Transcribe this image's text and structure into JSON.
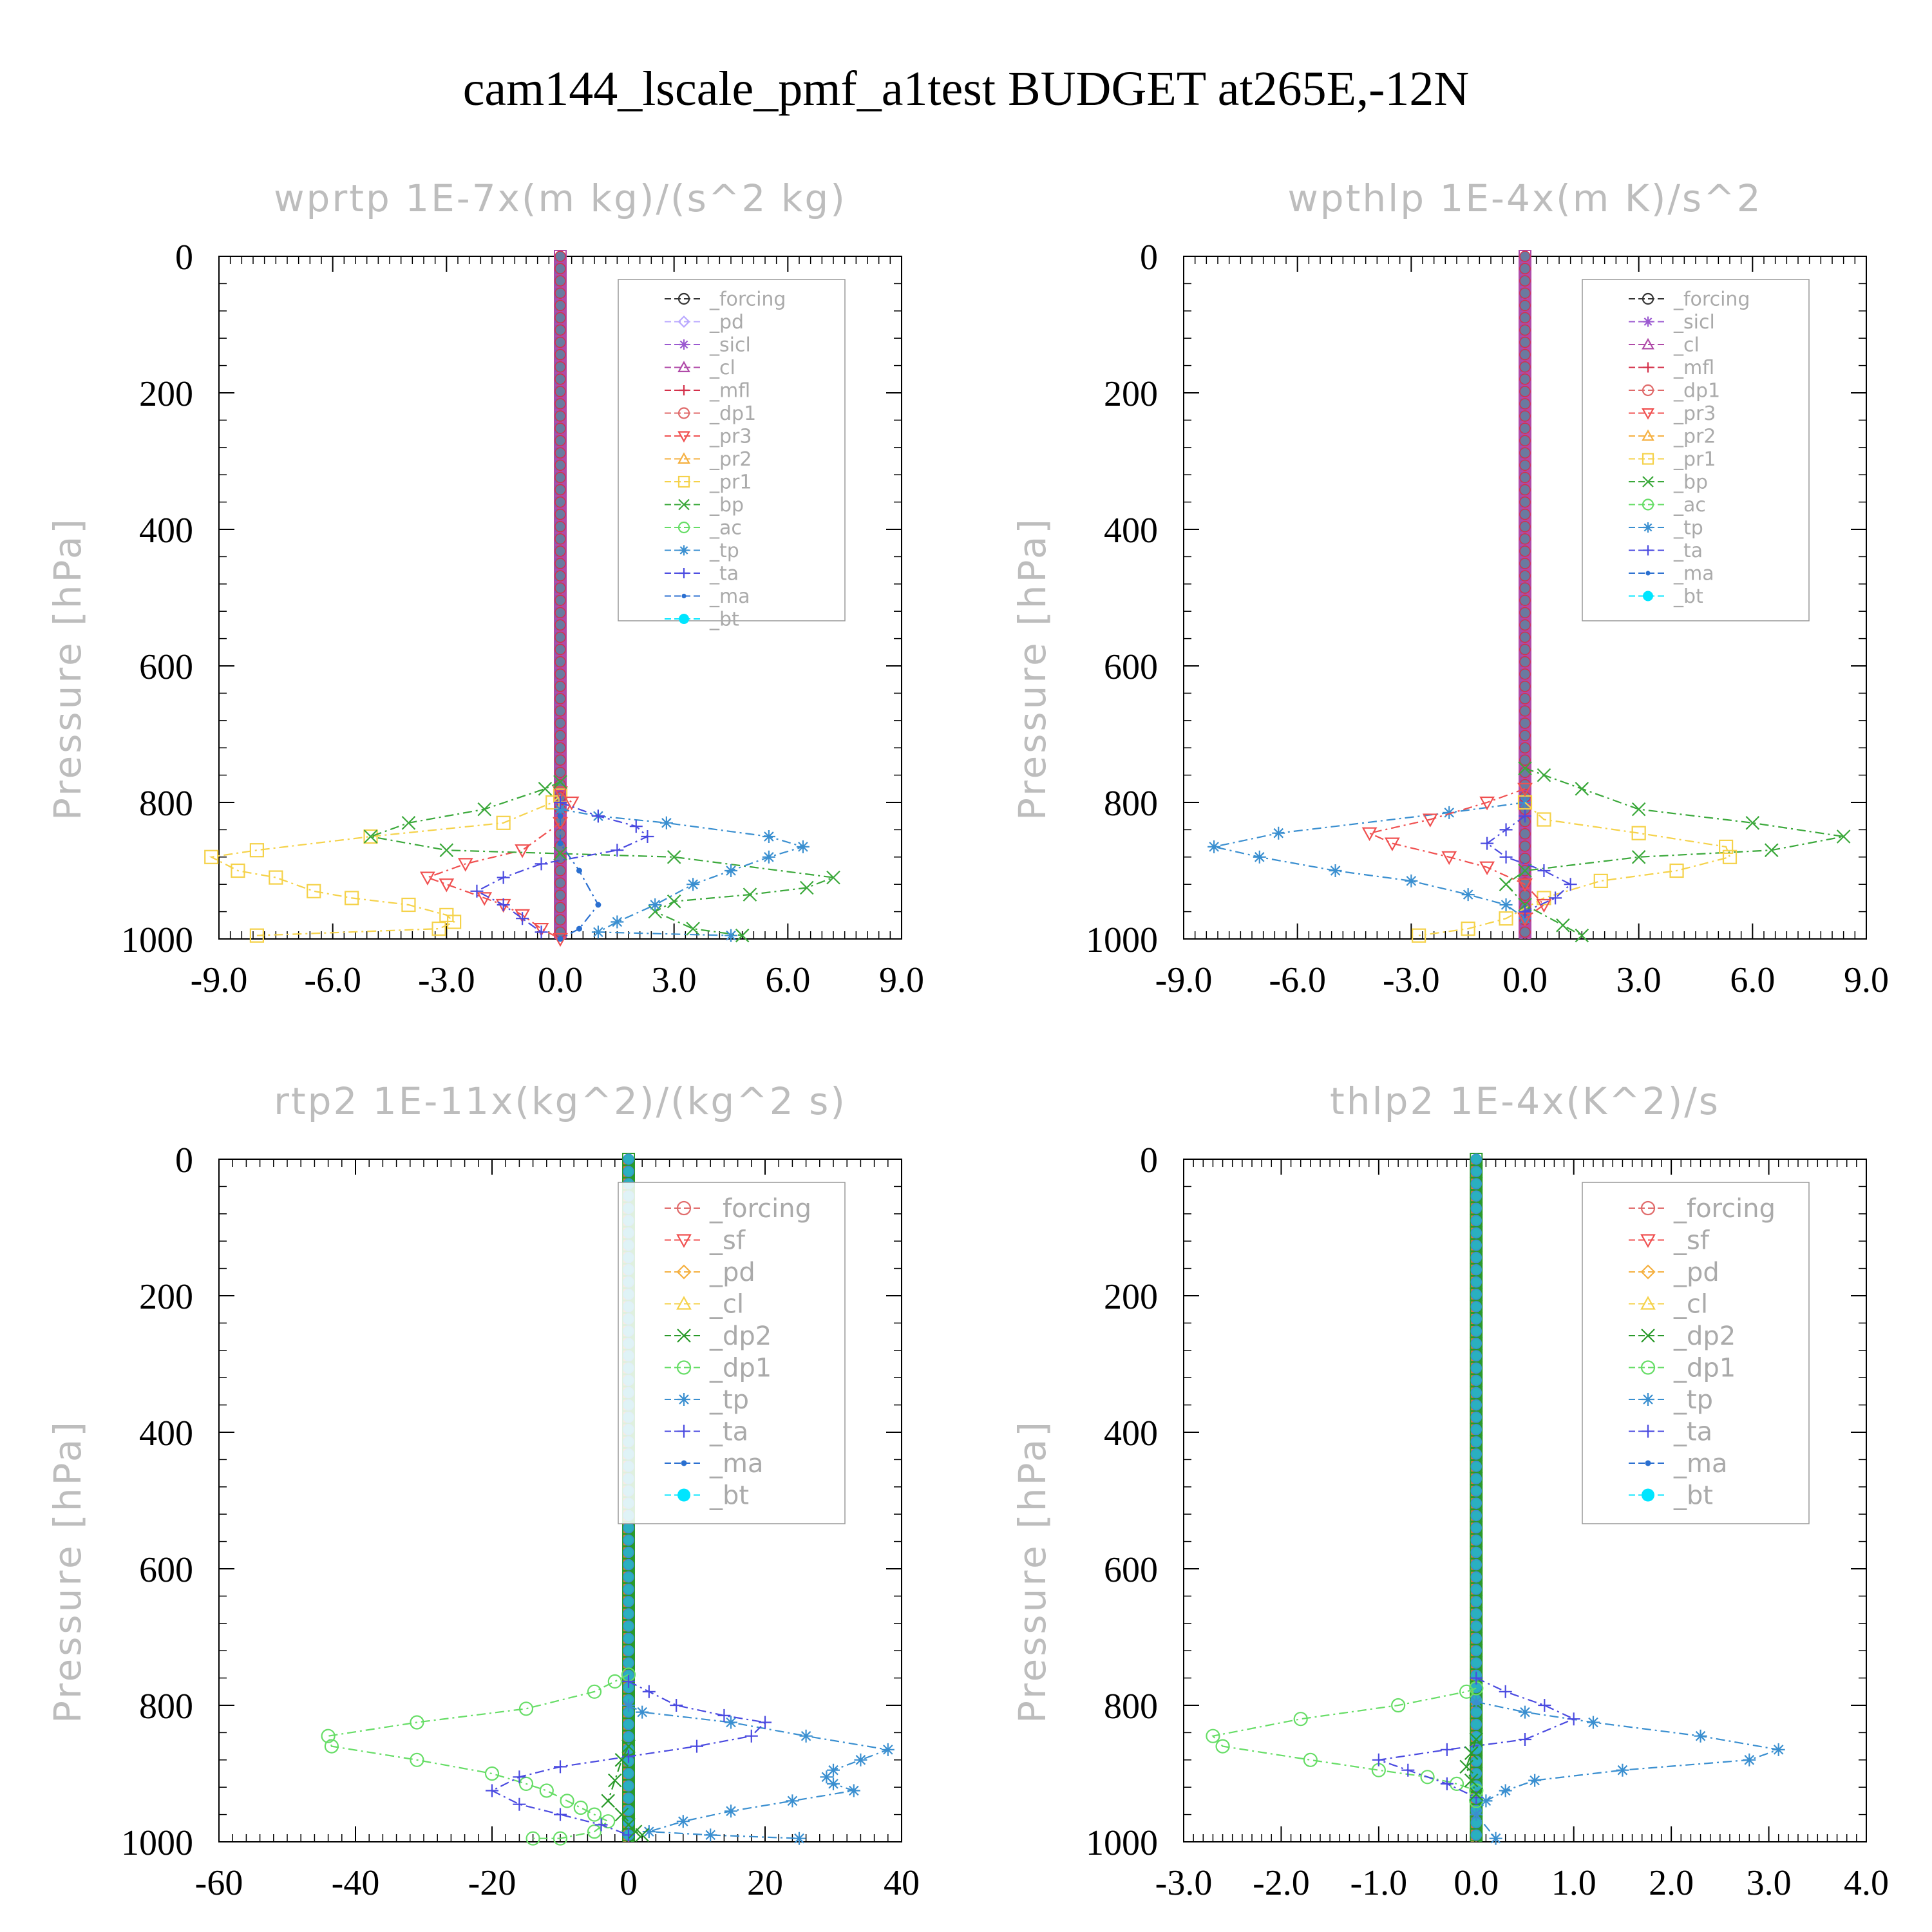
{
  "page_title": "cam144_lscale_pmf_a1test  BUDGET at265E,-12N",
  "colors": {
    "forcing": "#333333",
    "pd": "#b9a8ff",
    "sicl": "#9b59d0",
    "cl": "#b04aa8",
    "mfl": "#d4304a",
    "dp1": "#e06a6a",
    "pr3": "#f05050",
    "pr2": "#f5b040",
    "pr1": "#f5d24a",
    "bp": "#3aa83a",
    "ac": "#66dd66",
    "tp": "#3a8fd0",
    "ta": "#4a4ae0",
    "ma": "#2a6fd0",
    "bt": "#00e5ff",
    "sf": "#f05050",
    "dp2": "#2a9a2a"
  },
  "chart_data": [
    {
      "type": "line",
      "title": "wprtp  1E-7x(m kg)/(s^2 kg)",
      "ylabel": "Pressure [hPa]",
      "xlim": [
        -9,
        9
      ],
      "ylim": [
        0,
        1000
      ],
      "xticks": [
        "-9.0",
        "-6.0",
        "-3.0",
        "0.0",
        "3.0",
        "6.0",
        "9.0"
      ],
      "yticks": [
        "0",
        "200",
        "400",
        "600",
        "800",
        "1000"
      ],
      "legend": [
        "_forcing",
        "_pd",
        "_sicl",
        "_cl",
        "_mfl",
        "_dp1",
        "_pr3",
        "_pr2",
        "_pr1",
        "_bp",
        "_ac",
        "_tp",
        "_ta",
        "_ma",
        "_bt"
      ],
      "series": [
        {
          "name": "_pr1",
          "key": "pr1",
          "marker": "square",
          "x": [
            0,
            -0.2,
            -1.5,
            -5,
            -8,
            -9.2,
            -8.5,
            -7.5,
            -6.5,
            -5.5,
            -4,
            -3,
            -2.8,
            -3.2,
            -8
          ],
          "y": [
            790,
            800,
            830,
            850,
            870,
            880,
            900,
            910,
            930,
            940,
            950,
            965,
            975,
            985,
            995
          ]
        },
        {
          "name": "_pr3",
          "key": "pr3",
          "marker": "tri-down",
          "x": [
            0,
            0.3,
            0,
            -1,
            -2.5,
            -3.5,
            -3,
            -2,
            -1.5,
            -1,
            -0.5,
            0
          ],
          "y": [
            785,
            800,
            830,
            870,
            890,
            910,
            920,
            940,
            950,
            965,
            985,
            1000
          ]
        },
        {
          "name": "_bp",
          "key": "bp",
          "marker": "x",
          "x": [
            0,
            -0.4,
            -2,
            -4,
            -5,
            -3,
            0,
            3,
            7.2,
            6.5,
            5,
            3,
            2.5,
            3.5,
            4.8
          ],
          "y": [
            770,
            780,
            810,
            830,
            850,
            870,
            875,
            880,
            910,
            925,
            935,
            945,
            960,
            985,
            995
          ]
        },
        {
          "name": "_tp",
          "key": "tp",
          "marker": "star",
          "x": [
            0,
            1,
            2.8,
            5.5,
            6.4,
            5.5,
            4.5,
            3.5,
            2.5,
            1.5,
            1,
            4.5
          ],
          "y": [
            810,
            820,
            830,
            850,
            865,
            880,
            900,
            920,
            950,
            975,
            990,
            995
          ]
        },
        {
          "name": "_ta",
          "key": "ta",
          "marker": "plus",
          "x": [
            0,
            1,
            2,
            2.3,
            1.5,
            -0.5,
            -1.5,
            -2.2,
            -1.5,
            -1,
            -0.5
          ],
          "y": [
            800,
            820,
            835,
            850,
            870,
            890,
            910,
            930,
            950,
            970,
            990
          ]
        },
        {
          "name": "_ma",
          "key": "ma",
          "marker": "dot",
          "x": [
            0,
            0,
            0.5,
            1,
            0.5,
            0
          ],
          "y": [
            820,
            860,
            900,
            950,
            985,
            1000
          ]
        }
      ]
    },
    {
      "type": "line",
      "title": "wpthlp  1E-4x(m K)/s^2",
      "ylabel": "Pressure [hPa]",
      "xlim": [
        -9,
        9
      ],
      "ylim": [
        0,
        1000
      ],
      "xticks": [
        "-9.0",
        "-6.0",
        "-3.0",
        "0.0",
        "3.0",
        "6.0",
        "9.0"
      ],
      "yticks": [
        "0",
        "200",
        "400",
        "600",
        "800",
        "1000"
      ],
      "legend": [
        "_forcing",
        "_sicl",
        "_cl",
        "_mfl",
        "_dp1",
        "_pr3",
        "_pr2",
        "_pr1",
        "_bp",
        "_ac",
        "_tp",
        "_ta",
        "_ma",
        "_bt"
      ],
      "series": [
        {
          "name": "_bp",
          "key": "bp",
          "marker": "x",
          "x": [
            0,
            0.5,
            1.5,
            3,
            6,
            8.4,
            6.5,
            3,
            0,
            -0.5,
            0,
            1,
            1.5
          ],
          "y": [
            750,
            760,
            780,
            810,
            830,
            850,
            870,
            880,
            900,
            920,
            950,
            980,
            995
          ]
        },
        {
          "name": "_tp",
          "key": "tp",
          "marker": "star",
          "x": [
            0,
            -2,
            -6.5,
            -8.2,
            -7,
            -5,
            -3,
            -1.5,
            -0.5,
            0
          ],
          "y": [
            800,
            815,
            845,
            865,
            880,
            900,
            915,
            935,
            950,
            970
          ]
        },
        {
          "name": "_pr1",
          "key": "pr1",
          "marker": "square",
          "x": [
            0,
            0.5,
            3,
            5.3,
            5.4,
            4,
            2,
            0.5,
            -0.5,
            -1.5,
            -2.8
          ],
          "y": [
            800,
            825,
            845,
            865,
            880,
            900,
            915,
            940,
            970,
            985,
            995
          ]
        },
        {
          "name": "_pr3",
          "key": "pr3",
          "marker": "tri-down",
          "x": [
            0,
            -1,
            -2.5,
            -4.1,
            -3.5,
            -2,
            -1,
            0,
            0.5,
            0
          ],
          "y": [
            780,
            800,
            825,
            845,
            860,
            880,
            895,
            920,
            950,
            970
          ]
        },
        {
          "name": "_ta",
          "key": "ta",
          "marker": "plus",
          "x": [
            0,
            -0.5,
            -1,
            -0.5,
            0.5,
            1.2,
            0.8,
            0
          ],
          "y": [
            820,
            840,
            860,
            880,
            900,
            920,
            940,
            960
          ]
        }
      ]
    },
    {
      "type": "line",
      "title": "rtp2  1E-11x(kg^2)/(kg^2 s)",
      "ylabel": "Pressure [hPa]",
      "xlim": [
        -60,
        40
      ],
      "ylim": [
        0,
        1000
      ],
      "xticks": [
        "-60",
        "-40",
        "-20",
        "0",
        "20",
        "40"
      ],
      "yticks": [
        "0",
        "200",
        "400",
        "600",
        "800",
        "1000"
      ],
      "legend": [
        "_forcing",
        "_sf",
        "_pd",
        "_cl",
        "_dp2",
        "_dp1",
        "_tp",
        "_ta",
        "_ma",
        "_bt"
      ],
      "series": [
        {
          "name": "_dp1",
          "key": "ac",
          "marker": "circle",
          "x": [
            0,
            -2,
            -5,
            -15,
            -31,
            -44,
            -43.5,
            -31,
            -20,
            -15,
            -12,
            -9,
            -7,
            -5,
            -3,
            -5,
            -10,
            -14
          ],
          "y": [
            755,
            765,
            780,
            805,
            825,
            845,
            860,
            880,
            900,
            915,
            925,
            940,
            950,
            960,
            970,
            985,
            995,
            995
          ]
        },
        {
          "name": "_tp",
          "key": "tp",
          "marker": "star",
          "x": [
            0,
            2,
            15,
            26,
            38,
            34,
            30,
            29,
            30,
            33,
            24,
            15,
            8,
            3,
            12,
            25
          ],
          "y": [
            800,
            810,
            825,
            845,
            865,
            880,
            895,
            905,
            915,
            925,
            940,
            955,
            970,
            985,
            990,
            995
          ]
        },
        {
          "name": "_ta",
          "key": "ta",
          "marker": "plus",
          "x": [
            0,
            3,
            7,
            14,
            20,
            18,
            10,
            0,
            -10,
            -16,
            -20,
            -16,
            -10,
            -4,
            0
          ],
          "y": [
            765,
            780,
            800,
            815,
            825,
            845,
            860,
            875,
            890,
            905,
            925,
            945,
            960,
            975,
            990
          ]
        },
        {
          "name": "_dp2",
          "key": "dp2",
          "marker": "x",
          "x": [
            0,
            -1,
            -2,
            -3,
            -1,
            0,
            1,
            2
          ],
          "y": [
            860,
            880,
            910,
            940,
            960,
            975,
            985,
            990
          ]
        }
      ]
    },
    {
      "type": "line",
      "title": "thlp2  1E-4x(K^2)/s",
      "ylabel": "Pressure [hPa]",
      "xlim": [
        -3,
        4
      ],
      "ylim": [
        0,
        1000
      ],
      "xticks": [
        "-3.0",
        "-2.0",
        "-1.0",
        "0.0",
        "1.0",
        "2.0",
        "3.0",
        "4.0"
      ],
      "yticks": [
        "0",
        "200",
        "400",
        "600",
        "800",
        "1000"
      ],
      "legend": [
        "_forcing",
        "_sf",
        "_pd",
        "_cl",
        "_dp2",
        "_dp1",
        "_tp",
        "_ta",
        "_ma",
        "_bt"
      ],
      "series": [
        {
          "name": "_dp1",
          "key": "ac",
          "marker": "circle",
          "x": [
            0,
            -0.1,
            -0.8,
            -1.8,
            -2.7,
            -2.6,
            -1.7,
            -1,
            -0.5,
            -0.2,
            0,
            0
          ],
          "y": [
            775,
            780,
            800,
            820,
            845,
            860,
            880,
            895,
            905,
            915,
            925,
            940
          ]
        },
        {
          "name": "_tp",
          "key": "tp",
          "marker": "star",
          "x": [
            0,
            0.5,
            1.2,
            2.3,
            3.1,
            2.8,
            1.5,
            0.6,
            0.3,
            0.1,
            0,
            0.2
          ],
          "y": [
            795,
            810,
            825,
            845,
            865,
            880,
            895,
            910,
            925,
            940,
            960,
            995
          ]
        },
        {
          "name": "_ta",
          "key": "ta",
          "marker": "plus",
          "x": [
            0,
            0.3,
            0.7,
            1,
            0.5,
            -0.3,
            -1,
            -0.7,
            -0.3,
            0
          ],
          "y": [
            760,
            780,
            800,
            820,
            850,
            865,
            880,
            895,
            915,
            935
          ]
        },
        {
          "name": "_dp2",
          "key": "dp2",
          "marker": "x",
          "x": [
            0,
            -0.05,
            -0.1,
            -0.05,
            0
          ],
          "y": [
            850,
            870,
            890,
            910,
            930
          ]
        }
      ]
    }
  ]
}
